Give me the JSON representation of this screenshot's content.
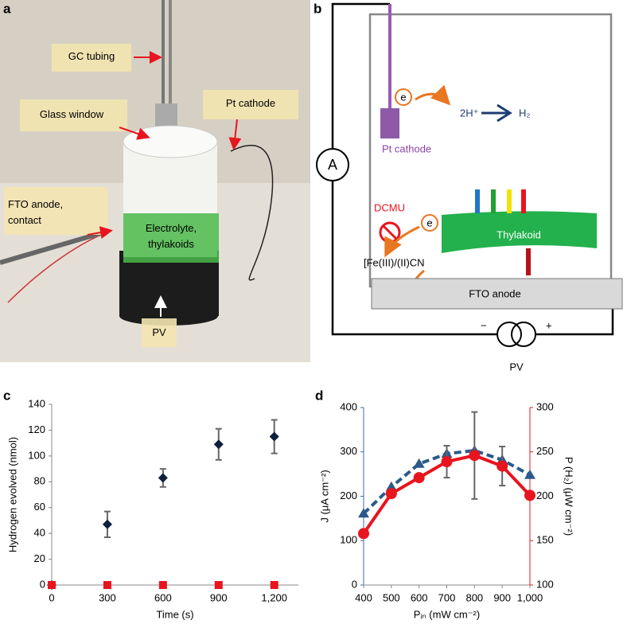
{
  "panel_labels": [
    "a",
    "b",
    "c",
    "d"
  ],
  "photo": {
    "labels": [
      [
        "GC tubing"
      ],
      [
        "Glass window"
      ],
      [
        "Pt cathode"
      ],
      [
        "FTO anode,",
        "contact"
      ],
      [
        "Electrolyte,",
        "thylakoids"
      ],
      [
        "PV"
      ]
    ]
  },
  "diagram": {
    "ammeter": "A",
    "cathode": "Pt cathode",
    "electron": "e",
    "proton": "2H⁺",
    "hydrogen": "H₂",
    "inhibitor": "DCMU",
    "thylakoid": "Thylakoid",
    "mediator": "[Fe(III)/(II)CN",
    "anode": "FTO anode",
    "minus": "−",
    "plus": "+",
    "pv": "PV"
  },
  "chart_data": [
    {
      "type": "scatter",
      "xlabel": "Time (s)",
      "ylabel": "Hydrogen evolved (nmol)",
      "x": [
        0,
        300,
        600,
        900,
        1200
      ],
      "xlim": [
        0,
        1330
      ],
      "xticks": [
        0,
        300,
        600,
        900,
        {
          "value": 1200,
          "label": "1,200"
        }
      ],
      "ylim": [
        0,
        140
      ],
      "yticks": [
        0,
        20,
        40,
        60,
        80,
        100,
        120,
        140
      ],
      "series": [
        {
          "color": "#0d1f3c",
          "marker": "diamond",
          "values": [
            0,
            47,
            83,
            109,
            115
          ],
          "errors": [
            null,
            10,
            7,
            12,
            13
          ]
        },
        {
          "color": "#e8141e",
          "marker": "square",
          "values": [
            0,
            0,
            0,
            0,
            0
          ]
        }
      ]
    },
    {
      "type": "line",
      "xlabel": "Pᵢₙ (mW cm⁻²)",
      "ylabel": "J (μA cm⁻²)",
      "y2label": "P (H₂) (μW cm⁻²)",
      "x": [
        400,
        500,
        600,
        700,
        800,
        900,
        1000
      ],
      "xlim": [
        400,
        1000
      ],
      "xticks": [
        400,
        500,
        600,
        700,
        800,
        900,
        {
          "value": 1000,
          "label": "1,000"
        }
      ],
      "ylim": [
        0,
        400
      ],
      "yticks": [
        0,
        100,
        200,
        300,
        400
      ],
      "y2lim": [
        100,
        300
      ],
      "y2ticks": [
        100,
        150,
        200,
        250,
        300
      ],
      "y_axis_color": "#3b6ea5",
      "y2_axis_color": "#e8141e",
      "series": [
        {
          "color": "#2b5a8a",
          "marker": "triangle",
          "line_style": "dashed",
          "values": [
            161,
            221,
            273,
            296,
            303,
            282,
            248
          ]
        },
        {
          "axis": "y2",
          "color": "#e8141e",
          "marker": "circle",
          "line_style": "solid",
          "values": [
            158,
            203,
            221,
            239,
            246,
            234,
            201
          ],
          "errors": [
            null,
            null,
            null,
            18,
            49,
            22,
            null
          ]
        }
      ]
    }
  ]
}
